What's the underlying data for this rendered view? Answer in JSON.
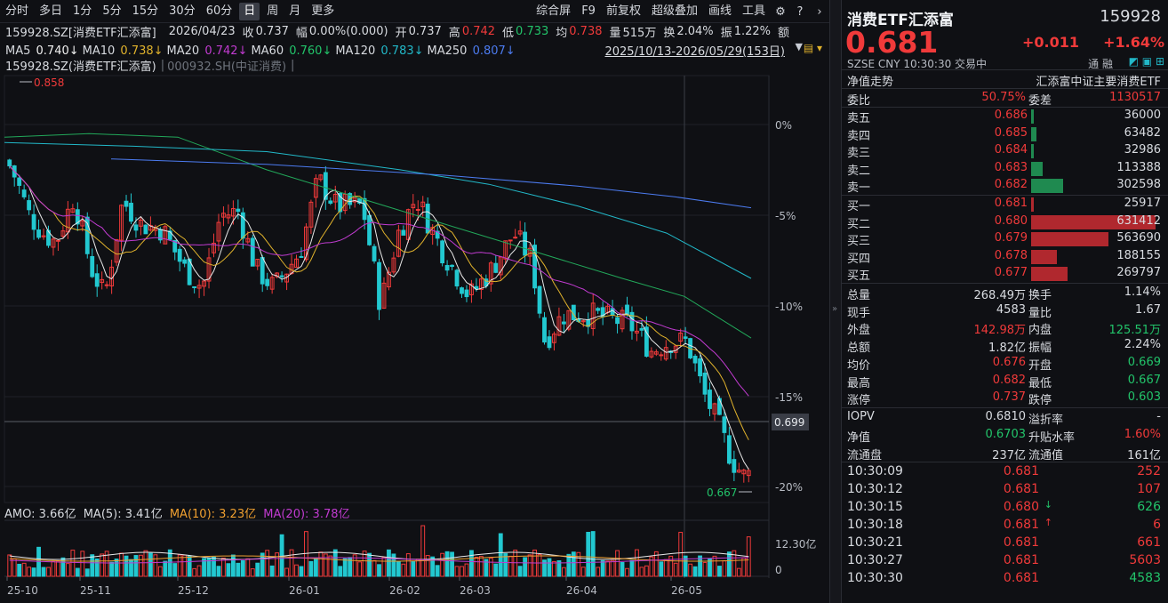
{
  "toolbar": {
    "left": [
      "分时",
      "多日",
      "1分",
      "5分",
      "15分",
      "30分",
      "60分",
      "日",
      "周",
      "月",
      "更多"
    ],
    "active": "日",
    "right": [
      "综合屏",
      "F9",
      "前复权",
      "超级叠加",
      "画线",
      "工具"
    ],
    "icons": [
      "settings-icon",
      "help-icon",
      "chevron-right-icon"
    ]
  },
  "info1": {
    "code_name": "159928.SZ[消费ETF汇添富]",
    "date": "2026/04/23",
    "close_label": "收",
    "close": "0.737",
    "amp_label": "幅",
    "amp": "0.00%(0.000)",
    "open_label": "开",
    "open": "0.737",
    "high_label": "高",
    "high": "0.742",
    "low_label": "低",
    "low": "0.733",
    "avg_label": "均",
    "avg": "0.738",
    "vol_label": "量",
    "vol": "515万",
    "turn_label": "换",
    "turn": "2.04%",
    "swing_label": "振",
    "swing": "1.22%",
    "amt_label": "额"
  },
  "info2": {
    "ma": [
      {
        "label": "MA5",
        "value": "0.740↓",
        "color": "#f0f0f0"
      },
      {
        "label": "MA10",
        "value": "0.738↓",
        "color": "#e0b22c"
      },
      {
        "label": "MA20",
        "value": "0.742↓",
        "color": "#c13bd0"
      },
      {
        "label": "MA60",
        "value": "0.760↓",
        "color": "#22c46a"
      },
      {
        "label": "MA120",
        "value": "0.783↓",
        "color": "#22b8c8"
      },
      {
        "label": "MA250",
        "value": "0.807↓",
        "color": "#4c7bf0"
      }
    ],
    "range": "2025/10/13-2026/05/29(153日)"
  },
  "info3": {
    "main": "159928.SZ(消费ETF汇添富)",
    "overlay": "000932.SH(中证消费)"
  },
  "chart_data": {
    "type": "candlestick",
    "y_axis": {
      "labels": [
        "0%",
        "-5%",
        "-10%",
        "-15%",
        "-20%"
      ]
    },
    "price_marker": "0.699",
    "high_marker": "0.858",
    "low_marker": "0.667",
    "x_axis": {
      "labels": [
        "25-10",
        "25-11",
        "25-12",
        "26-01",
        "26-02",
        "26-03",
        "26-04",
        "26-05"
      ]
    },
    "volume_axis": {
      "labels": [
        "12.30亿",
        "0"
      ]
    },
    "amo": {
      "label": "AMO: 3.66亿",
      "ma5": "MA(5): 3.41亿",
      "ma10": "MA(10): 3.23亿",
      "ma20": "MA(20): 3.78亿"
    }
  },
  "quote": {
    "name": "消费ETF汇添富",
    "code": "159928",
    "price": "0.681",
    "change": "+0.011",
    "change_pct": "+1.64%",
    "meta": "SZSE  CNY  10:30:30  交易中",
    "meta2": "通 融"
  },
  "nav": {
    "title": "净值走势",
    "full_name": "汇添富中证主要消费ETF"
  },
  "ratio": {
    "label": "委比",
    "value": "50.75%",
    "label2": "委差",
    "value2": "1130517"
  },
  "asks": [
    {
      "label": "卖五",
      "price": "0.686",
      "vol": "36000",
      "bar": 0.02
    },
    {
      "label": "卖四",
      "price": "0.685",
      "vol": "63482",
      "bar": 0.04
    },
    {
      "label": "卖三",
      "price": "0.684",
      "vol": "32986",
      "bar": 0.02
    },
    {
      "label": "卖二",
      "price": "0.683",
      "vol": "113388",
      "bar": 0.09
    },
    {
      "label": "卖一",
      "price": "0.682",
      "vol": "302598",
      "bar": 0.26
    }
  ],
  "bids": [
    {
      "label": "买一",
      "price": "0.681",
      "vol": "25917",
      "bar": 0.02
    },
    {
      "label": "买二",
      "price": "0.680",
      "vol": "631412",
      "bar": 1.0
    },
    {
      "label": "买三",
      "price": "0.679",
      "vol": "563690",
      "bar": 0.62
    },
    {
      "label": "买四",
      "price": "0.678",
      "vol": "188155",
      "bar": 0.21
    },
    {
      "label": "买五",
      "price": "0.677",
      "vol": "269797",
      "bar": 0.29
    }
  ],
  "stats": [
    {
      "l": "总量",
      "v": "268.49万",
      "c": "#d8dbe0",
      "l2": "换手",
      "v2": "1.14%",
      "c2": "#d8dbe0"
    },
    {
      "l": "现手",
      "v": "4583",
      "c": "#d8dbe0",
      "l2": "量比",
      "v2": "1.67",
      "c2": "#d8dbe0"
    },
    {
      "l": "外盘",
      "v": "142.98万",
      "c": "#f03a3a",
      "l2": "内盘",
      "v2": "125.51万",
      "c2": "#22c46a"
    },
    {
      "l": "总额",
      "v": "1.82亿",
      "c": "#d8dbe0",
      "l2": "振幅",
      "v2": "2.24%",
      "c2": "#d8dbe0"
    },
    {
      "l": "均价",
      "v": "0.676",
      "c": "#f03a3a",
      "l2": "开盘",
      "v2": "0.669",
      "c2": "#22c46a"
    },
    {
      "l": "最高",
      "v": "0.682",
      "c": "#f03a3a",
      "l2": "最低",
      "v2": "0.667",
      "c2": "#22c46a"
    },
    {
      "l": "涨停",
      "v": "0.737",
      "c": "#f03a3a",
      "l2": "跌停",
      "v2": "0.603",
      "c2": "#22c46a"
    }
  ],
  "stats2": [
    {
      "l": "IOPV",
      "v": "0.6810",
      "c": "#d8dbe0",
      "l2": "溢折率",
      "v2": "-",
      "c2": "#d8dbe0"
    },
    {
      "l": "净值",
      "v": "0.6703",
      "c": "#22c46a",
      "l2": "升贴水率",
      "v2": "1.60%",
      "c2": "#f03a3a"
    },
    {
      "l": "流通盘",
      "v": "237亿",
      "c": "#d8dbe0",
      "l2": "流通值",
      "v2": "161亿",
      "c2": "#d8dbe0"
    }
  ],
  "ticks": [
    {
      "t": "10:30:09",
      "p": "0.681",
      "d": "",
      "v": "252",
      "vc": "#f03a3a"
    },
    {
      "t": "10:30:12",
      "p": "0.681",
      "d": "",
      "v": "107",
      "vc": "#f03a3a"
    },
    {
      "t": "10:30:15",
      "p": "0.680",
      "d": "↓",
      "v": "626",
      "vc": "#22c46a"
    },
    {
      "t": "10:30:18",
      "p": "0.681",
      "d": "↑",
      "v": "6",
      "vc": "#f03a3a"
    },
    {
      "t": "10:30:21",
      "p": "0.681",
      "d": "",
      "v": "661",
      "vc": "#f03a3a"
    },
    {
      "t": "10:30:27",
      "p": "0.681",
      "d": "",
      "v": "5603",
      "vc": "#f03a3a"
    },
    {
      "t": "10:30:30",
      "p": "0.681",
      "d": "",
      "v": "4583",
      "vc": "#22c46a"
    }
  ]
}
